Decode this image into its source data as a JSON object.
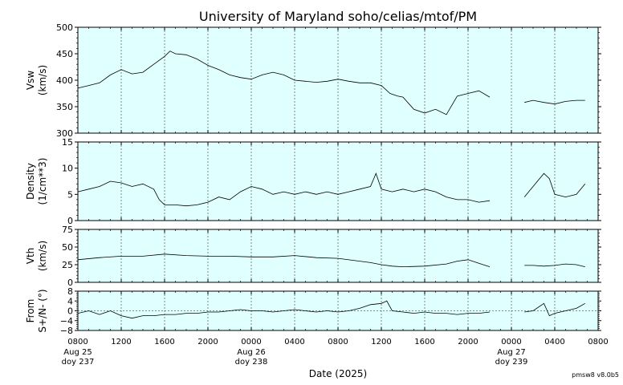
{
  "page": {
    "title": "University of Maryland  soho/celias/mtof/PM",
    "xlabel": "Date (2025)",
    "version": "pmsw8 v8.0b5"
  },
  "chart_data": {
    "type": "line",
    "x_axis": {
      "start_hour": 8,
      "end_hour": 56,
      "tick_hours": [
        8,
        12,
        16,
        20,
        24,
        28,
        32,
        36,
        40,
        44,
        48,
        52,
        56
      ],
      "tick_labels": [
        "0800",
        "1200",
        "1600",
        "2000",
        "0000",
        "0400",
        "0800",
        "1200",
        "1600",
        "2000",
        "0000",
        "0400",
        "0800"
      ],
      "date_labels": [
        {
          "hour": 8,
          "line1": "Aug 25",
          "line2": "doy 237"
        },
        {
          "hour": 24,
          "line1": "Aug 26",
          "line2": "doy 238"
        },
        {
          "hour": 48,
          "line1": "Aug 27",
          "line2": "doy 239"
        }
      ]
    },
    "panels": [
      {
        "id": "vsw",
        "ylabel": [
          "Vsw",
          "(km/s)"
        ],
        "ylim": [
          300,
          500
        ],
        "yticks": [
          300,
          350,
          400,
          450,
          500
        ],
        "ytick_labels": [
          "300",
          "350",
          "400",
          "450",
          "500"
        ],
        "ref_line": null,
        "series": [
          {
            "segment": [
              [
                8,
                385
              ],
              [
                9,
                390
              ],
              [
                10,
                395
              ],
              [
                11,
                410
              ],
              [
                12,
                420
              ],
              [
                13,
                412
              ],
              [
                14,
                415
              ],
              [
                15,
                430
              ],
              [
                16,
                445
              ],
              [
                16.5,
                455
              ],
              [
                17,
                450
              ],
              [
                18,
                448
              ],
              [
                19,
                440
              ],
              [
                20,
                428
              ],
              [
                21,
                420
              ],
              [
                22,
                410
              ],
              [
                23,
                405
              ],
              [
                24,
                402
              ],
              [
                25,
                410
              ],
              [
                26,
                415
              ],
              [
                27,
                410
              ],
              [
                28,
                400
              ],
              [
                29,
                398
              ],
              [
                30,
                396
              ],
              [
                31,
                398
              ],
              [
                32,
                402
              ],
              [
                33,
                398
              ],
              [
                34,
                395
              ],
              [
                35,
                395
              ],
              [
                36,
                390
              ],
              [
                36.8,
                375
              ],
              [
                37.5,
                370
              ],
              [
                38,
                368
              ],
              [
                39,
                345
              ],
              [
                40,
                338
              ],
              [
                41,
                345
              ],
              [
                42,
                335
              ],
              [
                43,
                370
              ],
              [
                44,
                375
              ],
              [
                45,
                380
              ],
              [
                46,
                368
              ]
            ]
          },
          {
            "segment": [
              [
                49.2,
                358
              ],
              [
                50,
                362
              ],
              [
                51,
                358
              ],
              [
                52,
                355
              ],
              [
                53,
                360
              ],
              [
                54,
                362
              ],
              [
                54.8,
                362
              ]
            ]
          }
        ]
      },
      {
        "id": "density",
        "ylabel": [
          "Density",
          "(1/cm**3)"
        ],
        "ylim": [
          0,
          15
        ],
        "yticks": [
          0,
          5,
          10,
          15
        ],
        "ytick_labels": [
          "0",
          "5",
          "10",
          "15"
        ],
        "ref_line": null,
        "series": [
          {
            "segment": [
              [
                8,
                5.5
              ],
              [
                9,
                6.0
              ],
              [
                10,
                6.5
              ],
              [
                11,
                7.5
              ],
              [
                12,
                7.2
              ],
              [
                13,
                6.5
              ],
              [
                14,
                7.0
              ],
              [
                15,
                6.0
              ],
              [
                15.5,
                4.0
              ],
              [
                16,
                3.0
              ],
              [
                17,
                3.0
              ],
              [
                18,
                2.8
              ],
              [
                19,
                3.0
              ],
              [
                20,
                3.5
              ],
              [
                21,
                4.5
              ],
              [
                22,
                4.0
              ],
              [
                23,
                5.5
              ],
              [
                24,
                6.5
              ],
              [
                25,
                6.0
              ],
              [
                26,
                5.0
              ],
              [
                27,
                5.5
              ],
              [
                28,
                5.0
              ],
              [
                29,
                5.5
              ],
              [
                30,
                5.0
              ],
              [
                31,
                5.5
              ],
              [
                32,
                5.0
              ],
              [
                33,
                5.5
              ],
              [
                34,
                6.0
              ],
              [
                35,
                6.5
              ],
              [
                35.5,
                9.0
              ],
              [
                36,
                6.0
              ],
              [
                37,
                5.5
              ],
              [
                38,
                6.0
              ],
              [
                39,
                5.5
              ],
              [
                40,
                6.0
              ],
              [
                41,
                5.5
              ],
              [
                42,
                4.5
              ],
              [
                43,
                4.0
              ],
              [
                44,
                4.0
              ],
              [
                45,
                3.5
              ],
              [
                46,
                3.8
              ]
            ]
          },
          {
            "segment": [
              [
                49.2,
                4.5
              ],
              [
                50,
                6.5
              ],
              [
                51,
                9.0
              ],
              [
                51.5,
                8.0
              ],
              [
                52,
                5.0
              ],
              [
                53,
                4.5
              ],
              [
                54,
                5.0
              ],
              [
                54.8,
                7.0
              ]
            ]
          }
        ]
      },
      {
        "id": "vth",
        "ylabel": [
          "Vth",
          "(km/s)"
        ],
        "ylim": [
          0,
          75
        ],
        "yticks": [
          0,
          25,
          50,
          75
        ],
        "ytick_labels": [
          "0",
          "25",
          "50",
          "75"
        ],
        "ref_line": null,
        "series": [
          {
            "segment": [
              [
                8,
                32
              ],
              [
                10,
                35
              ],
              [
                12,
                37
              ],
              [
                14,
                37
              ],
              [
                16,
                40
              ],
              [
                18,
                38
              ],
              [
                20,
                37
              ],
              [
                22,
                37
              ],
              [
                24,
                36
              ],
              [
                26,
                36
              ],
              [
                28,
                38
              ],
              [
                30,
                35
              ],
              [
                32,
                34
              ],
              [
                34,
                30
              ],
              [
                35,
                28
              ],
              [
                36,
                25
              ],
              [
                37,
                23
              ],
              [
                38,
                22
              ],
              [
                40,
                23
              ],
              [
                42,
                26
              ],
              [
                43,
                30
              ],
              [
                44,
                32
              ],
              [
                45,
                27
              ],
              [
                46,
                22
              ]
            ]
          },
          {
            "segment": [
              [
                49.2,
                24
              ],
              [
                50,
                24
              ],
              [
                51,
                23
              ],
              [
                52,
                24
              ],
              [
                53,
                26
              ],
              [
                54,
                25
              ],
              [
                54.8,
                22
              ]
            ]
          }
        ]
      },
      {
        "id": "from",
        "ylabel": [
          "From",
          "S+/N- (°)"
        ],
        "ylim": [
          -8,
          8
        ],
        "yticks": [
          -8,
          -4,
          0,
          4,
          8
        ],
        "ytick_labels": [
          "−8",
          "−4",
          "0",
          "4",
          "8"
        ],
        "ref_line": 0,
        "series": [
          {
            "segment": [
              [
                8,
                -1
              ],
              [
                9,
                0
              ],
              [
                10,
                -1.5
              ],
              [
                11,
                0
              ],
              [
                12,
                -2
              ],
              [
                13,
                -3
              ],
              [
                14,
                -2
              ],
              [
                15,
                -2
              ],
              [
                16,
                -1.5
              ],
              [
                17,
                -1.5
              ],
              [
                18,
                -1
              ],
              [
                19,
                -1
              ],
              [
                20,
                -0.5
              ],
              [
                21,
                -0.5
              ],
              [
                22,
                0
              ],
              [
                23,
                0.5
              ],
              [
                24,
                0
              ],
              [
                25,
                0
              ],
              [
                26,
                -0.5
              ],
              [
                27,
                0
              ],
              [
                28,
                0.5
              ],
              [
                29,
                0
              ],
              [
                30,
                -0.5
              ],
              [
                31,
                0
              ],
              [
                32,
                -0.5
              ],
              [
                33,
                0
              ],
              [
                34,
                1
              ],
              [
                35,
                2.5
              ],
              [
                36,
                3
              ],
              [
                36.5,
                4
              ],
              [
                37,
                0
              ],
              [
                38,
                -0.5
              ],
              [
                39,
                -1
              ],
              [
                40,
                -0.5
              ],
              [
                41,
                -1
              ],
              [
                42,
                -1
              ],
              [
                43,
                -1.5
              ],
              [
                44,
                -1
              ],
              [
                45,
                -1
              ],
              [
                46,
                -0.5
              ]
            ]
          },
          {
            "segment": [
              [
                49.2,
                -0.5
              ],
              [
                50,
                0
              ],
              [
                51,
                3
              ],
              [
                51.5,
                -2
              ],
              [
                52,
                -1
              ],
              [
                53,
                0
              ],
              [
                54,
                1
              ],
              [
                54.8,
                3
              ]
            ]
          }
        ]
      }
    ]
  }
}
